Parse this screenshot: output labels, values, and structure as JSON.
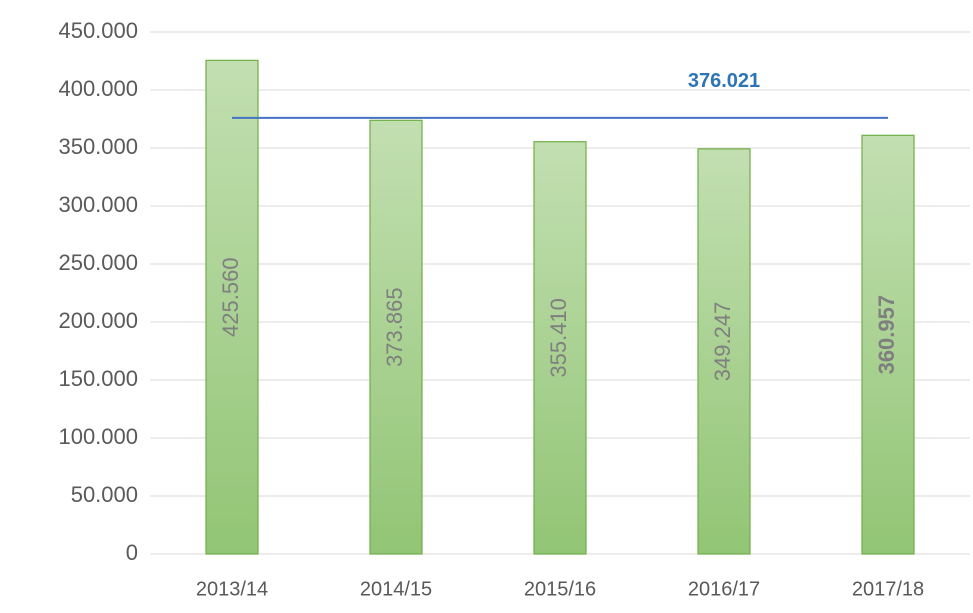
{
  "chart_data": {
    "type": "bar",
    "categories": [
      "2013/14",
      "2014/15",
      "2015/16",
      "2016/17",
      "2017/18"
    ],
    "values": [
      425560,
      373865,
      355410,
      349247,
      360957
    ],
    "value_labels": [
      "425.560",
      "373.865",
      "355.410",
      "349.247",
      "360.957"
    ],
    "value_label_bold": [
      false,
      false,
      false,
      false,
      true
    ],
    "color": "#a9d18e",
    "ylim": [
      0,
      450000
    ],
    "yticks": [
      0,
      {
        "value": 50000,
        "label": "50.000"
      },
      {
        "value": 100000,
        "label": "100.000"
      },
      {
        "value": 150000,
        "label": "150.000"
      },
      {
        "value": 200000,
        "label": "200.000"
      },
      {
        "value": 250000,
        "label": "250.000"
      },
      {
        "value": 300000,
        "label": "300.000"
      },
      {
        "value": 350000,
        "label": "350.000"
      },
      {
        "value": 400000,
        "label": "400.000"
      },
      {
        "value": 450000,
        "label": "450.000"
      }
    ],
    "grid": true,
    "average": {
      "value": 376021,
      "label": "376.021",
      "color": "#4472c4"
    }
  }
}
